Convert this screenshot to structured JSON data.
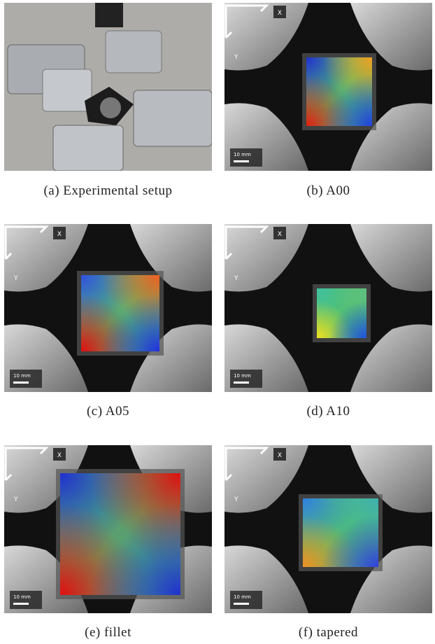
{
  "panels": [
    {
      "caption": "(a) Experimental setup"
    },
    {
      "caption": "(b) A00",
      "x_label": "X",
      "y_label": "Y",
      "scale_label": "10 mm"
    },
    {
      "caption": "(c) A05",
      "x_label": "X",
      "y_label": "Y",
      "scale_label": "10 mm"
    },
    {
      "caption": "(d) A10",
      "x_label": "X",
      "y_label": "Y",
      "scale_label": "10 mm"
    },
    {
      "caption": "(e) fillet",
      "x_label": "X",
      "y_label": "Y",
      "scale_label": "10 mm"
    },
    {
      "caption": "(f) tapered",
      "x_label": "X",
      "y_label": "Y",
      "scale_label": "10 mm"
    }
  ]
}
